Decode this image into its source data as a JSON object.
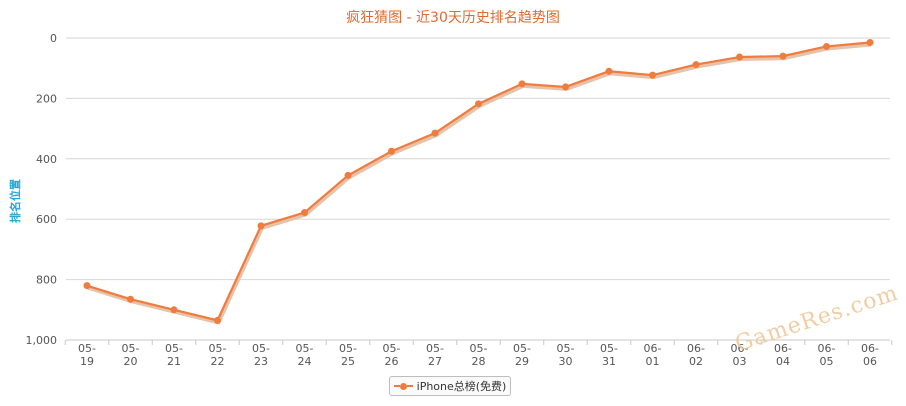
{
  "chart_data": {
    "type": "line",
    "title": "疯狂猜图 - 近30天历史排名趋势图",
    "ylabel": "排名位置",
    "xlabel": "",
    "y_reversed": true,
    "ylim": [
      0,
      1000
    ],
    "y_ticks": [
      "0",
      "200",
      "400",
      "600",
      "800",
      "1,000"
    ],
    "y_tick_values": [
      0,
      200,
      400,
      600,
      800,
      1000
    ],
    "grid": "horizontal",
    "categories": [
      [
        "05-",
        "19"
      ],
      [
        "05-",
        "20"
      ],
      [
        "05-",
        "21"
      ],
      [
        "05-",
        "22"
      ],
      [
        "05-",
        "23"
      ],
      [
        "05-",
        "24"
      ],
      [
        "05-",
        "25"
      ],
      [
        "05-",
        "26"
      ],
      [
        "05-",
        "27"
      ],
      [
        "05-",
        "28"
      ],
      [
        "05-",
        "29"
      ],
      [
        "05-",
        "30"
      ],
      [
        "05-",
        "31"
      ],
      [
        "06-",
        "01"
      ],
      [
        "06-",
        "02"
      ],
      [
        "06-",
        "03"
      ],
      [
        "06-",
        "04"
      ],
      [
        "06-",
        "05"
      ],
      [
        "06-",
        "06"
      ]
    ],
    "series": [
      {
        "name": "iPhone总榜(免费)",
        "color": "#f07b3f",
        "values": [
          820,
          865,
          900,
          935,
          622,
          578,
          455,
          375,
          315,
          218,
          152,
          162,
          110,
          123,
          88,
          63,
          60,
          28,
          15
        ]
      }
    ],
    "legend_position": "bottom-center"
  },
  "watermark": "GameRes.com",
  "colors": {
    "title": "#e2692f",
    "ylabel": "#2aa7d6",
    "series": "#f07b3f",
    "grid": "#d6d6d6",
    "watermark": "#f0c89a"
  }
}
